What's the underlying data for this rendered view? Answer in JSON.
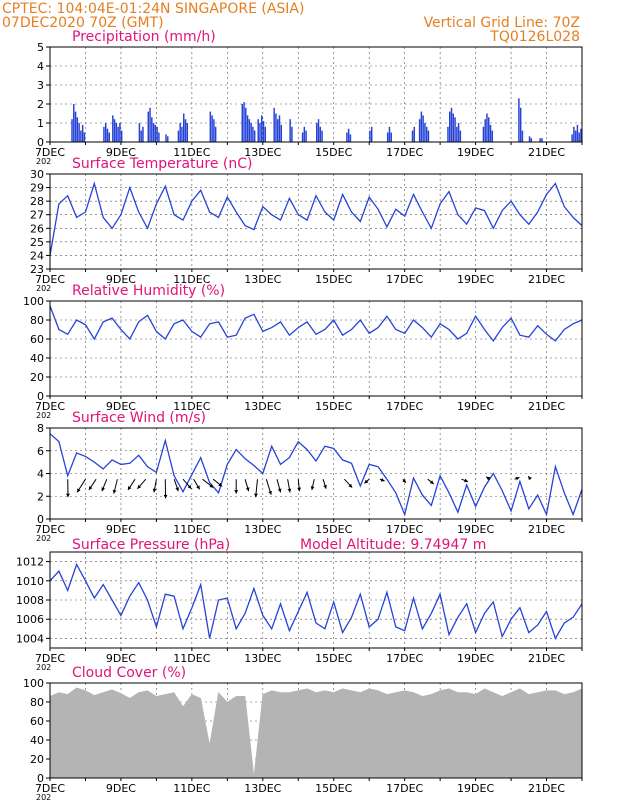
{
  "header": {
    "line1_left": "CPTEC:  104:04E-01:24N  SINGAPORE (ASIA)",
    "line2_left": "07DEC2020 70Z (GMT)",
    "line2_right": "Vertical Grid Line: 70Z",
    "line3_right": "TQ0126L028"
  },
  "colors": {
    "header": "#e67e22",
    "title": "#e0147a",
    "series": "#2743d6",
    "cloud": "#b4b4b4",
    "wind_arrow": "#000000"
  },
  "x_axis": {
    "tick_labels": [
      "7DEC",
      "9DEC",
      "11DEC",
      "13DEC",
      "15DEC",
      "17DEC",
      "19DEC",
      "21DEC"
    ],
    "year_label": "202",
    "range_days": [
      0,
      15
    ]
  },
  "chart_data": [
    {
      "type": "bar",
      "title": "Precipitation (mm/h)",
      "ylim": [
        0,
        5
      ],
      "yticks": [
        "0",
        "1",
        "2",
        "3",
        "4",
        "5"
      ],
      "grid": true,
      "bars": [
        [
          0.6,
          1.2
        ],
        [
          0.65,
          2.0
        ],
        [
          0.7,
          1.6
        ],
        [
          0.75,
          1.3
        ],
        [
          0.8,
          1.0
        ],
        [
          0.85,
          0.6
        ],
        [
          0.9,
          0.9
        ],
        [
          0.95,
          0.5
        ],
        [
          1.5,
          0.8
        ],
        [
          1.55,
          1.0
        ],
        [
          1.6,
          0.7
        ],
        [
          1.65,
          0.5
        ],
        [
          1.75,
          1.4
        ],
        [
          1.8,
          1.2
        ],
        [
          1.85,
          1.0
        ],
        [
          1.9,
          0.8
        ],
        [
          1.95,
          1.0
        ],
        [
          2.0,
          0.6
        ],
        [
          2.5,
          1.0
        ],
        [
          2.55,
          0.6
        ],
        [
          2.6,
          0.8
        ],
        [
          2.75,
          1.6
        ],
        [
          2.8,
          1.8
        ],
        [
          2.85,
          1.3
        ],
        [
          2.9,
          1.0
        ],
        [
          2.95,
          0.9
        ],
        [
          3.0,
          0.8
        ],
        [
          3.05,
          0.5
        ],
        [
          3.25,
          0.4
        ],
        [
          3.3,
          0.3
        ],
        [
          3.6,
          0.6
        ],
        [
          3.65,
          1.0
        ],
        [
          3.7,
          0.8
        ],
        [
          3.75,
          1.5
        ],
        [
          3.8,
          1.2
        ],
        [
          3.85,
          1.0
        ],
        [
          4.5,
          1.6
        ],
        [
          4.55,
          1.4
        ],
        [
          4.6,
          1.2
        ],
        [
          4.65,
          0.8
        ],
        [
          5.4,
          2.0
        ],
        [
          5.45,
          2.1
        ],
        [
          5.5,
          1.8
        ],
        [
          5.55,
          1.4
        ],
        [
          5.6,
          1.2
        ],
        [
          5.65,
          1.0
        ],
        [
          5.7,
          0.8
        ],
        [
          5.75,
          0.6
        ],
        [
          5.85,
          1.2
        ],
        [
          5.9,
          1.0
        ],
        [
          5.95,
          1.4
        ],
        [
          6.0,
          1.1
        ],
        [
          6.05,
          0.8
        ],
        [
          6.3,
          1.8
        ],
        [
          6.35,
          1.5
        ],
        [
          6.4,
          1.2
        ],
        [
          6.45,
          1.4
        ],
        [
          6.5,
          0.9
        ],
        [
          6.75,
          1.2
        ],
        [
          6.8,
          0.8
        ],
        [
          7.1,
          0.5
        ],
        [
          7.15,
          0.8
        ],
        [
          7.2,
          0.6
        ],
        [
          7.5,
          1.0
        ],
        [
          7.55,
          1.2
        ],
        [
          7.6,
          0.8
        ],
        [
          7.65,
          0.6
        ],
        [
          8.35,
          0.5
        ],
        [
          8.4,
          0.7
        ],
        [
          8.45,
          0.4
        ],
        [
          9.0,
          0.6
        ],
        [
          9.05,
          0.8
        ],
        [
          9.5,
          0.5
        ],
        [
          9.55,
          0.8
        ],
        [
          9.6,
          0.5
        ],
        [
          10.2,
          0.6
        ],
        [
          10.25,
          0.8
        ],
        [
          10.4,
          1.2
        ],
        [
          10.45,
          1.6
        ],
        [
          10.5,
          1.4
        ],
        [
          10.55,
          1.0
        ],
        [
          10.6,
          0.8
        ],
        [
          10.65,
          0.6
        ],
        [
          11.2,
          0.8
        ],
        [
          11.25,
          1.6
        ],
        [
          11.3,
          1.8
        ],
        [
          11.35,
          1.5
        ],
        [
          11.4,
          1.3
        ],
        [
          11.45,
          0.8
        ],
        [
          11.5,
          1.0
        ],
        [
          11.55,
          0.6
        ],
        [
          12.2,
          0.8
        ],
        [
          12.25,
          1.2
        ],
        [
          12.3,
          1.5
        ],
        [
          12.35,
          1.3
        ],
        [
          12.4,
          0.9
        ],
        [
          12.45,
          0.6
        ],
        [
          13.2,
          2.3
        ],
        [
          13.25,
          1.8
        ],
        [
          13.3,
          0.6
        ],
        [
          13.5,
          0.3
        ],
        [
          13.55,
          0.2
        ],
        [
          13.8,
          0.2
        ],
        [
          13.85,
          0.2
        ],
        [
          14.7,
          0.4
        ],
        [
          14.75,
          0.8
        ],
        [
          14.8,
          0.6
        ],
        [
          14.85,
          0.9
        ],
        [
          14.9,
          0.5
        ],
        [
          14.95,
          0.7
        ]
      ]
    },
    {
      "type": "line",
      "title": "Surface Temperature (nC)",
      "ylim": [
        23,
        30
      ],
      "yticks": [
        "23",
        "24",
        "25",
        "26",
        "27",
        "28",
        "29",
        "30"
      ],
      "grid": true,
      "x": [
        0,
        0.25,
        0.5,
        0.75,
        1,
        1.25,
        1.5,
        1.75,
        2,
        2.25,
        2.5,
        2.75,
        3,
        3.25,
        3.5,
        3.75,
        4,
        4.25,
        4.5,
        4.75,
        5,
        5.25,
        5.5,
        5.75,
        6,
        6.25,
        6.5,
        6.75,
        7,
        7.25,
        7.5,
        7.75,
        8,
        8.25,
        8.5,
        8.75,
        9,
        9.25,
        9.5,
        9.75,
        10,
        10.25,
        10.5,
        10.75,
        11,
        11.25,
        11.5,
        11.75,
        12,
        12.25,
        12.5,
        12.75,
        13,
        13.25,
        13.5,
        13.75,
        14,
        14.25,
        14.5,
        14.75,
        15
      ],
      "series": [
        {
          "values": [
            24.0,
            27.8,
            28.4,
            26.8,
            27.2,
            29.3,
            26.8,
            26.0,
            27.0,
            29.0,
            27.2,
            26.0,
            27.8,
            29.1,
            27.0,
            26.6,
            28.0,
            28.8,
            27.2,
            26.8,
            28.3,
            27.2,
            26.2,
            25.9,
            27.6,
            27.0,
            26.6,
            28.2,
            27.0,
            26.6,
            28.4,
            27.2,
            26.6,
            28.5,
            27.2,
            26.5,
            28.3,
            27.4,
            26.1,
            27.4,
            26.9,
            28.5,
            27.2,
            26.0,
            27.8,
            28.7,
            27.0,
            26.3,
            27.5,
            27.3,
            26.0,
            27.3,
            28.0,
            27.0,
            26.3,
            27.2,
            28.5,
            29.3,
            27.6,
            26.8,
            26.2
          ]
        }
      ]
    },
    {
      "type": "line",
      "title": "Relative Humidity (%)",
      "ylim": [
        0,
        100
      ],
      "yticks": [
        "0",
        "20",
        "40",
        "60",
        "80",
        "100"
      ],
      "grid": true,
      "x": [
        0,
        0.25,
        0.5,
        0.75,
        1,
        1.25,
        1.5,
        1.75,
        2,
        2.25,
        2.5,
        2.75,
        3,
        3.25,
        3.5,
        3.75,
        4,
        4.25,
        4.5,
        4.75,
        5,
        5.25,
        5.5,
        5.75,
        6,
        6.25,
        6.5,
        6.75,
        7,
        7.25,
        7.5,
        7.75,
        8,
        8.25,
        8.5,
        8.75,
        9,
        9.25,
        9.5,
        9.75,
        10,
        10.25,
        10.5,
        10.75,
        11,
        11.25,
        11.5,
        11.75,
        12,
        12.25,
        12.5,
        12.75,
        13,
        13.25,
        13.5,
        13.75,
        14,
        14.25,
        14.5,
        14.75,
        15
      ],
      "series": [
        {
          "values": [
            95,
            70,
            65,
            80,
            75,
            60,
            78,
            82,
            70,
            60,
            78,
            85,
            68,
            60,
            76,
            80,
            68,
            62,
            76,
            78,
            62,
            64,
            82,
            86,
            68,
            72,
            78,
            64,
            72,
            78,
            65,
            70,
            80,
            64,
            70,
            80,
            66,
            72,
            84,
            70,
            66,
            80,
            72,
            62,
            76,
            70,
            60,
            66,
            84,
            70,
            58,
            72,
            82,
            64,
            62,
            74,
            65,
            58,
            70,
            76,
            80
          ]
        }
      ]
    },
    {
      "type": "line",
      "title": "Surface Wind (m/s)",
      "ylim": [
        0,
        8
      ],
      "yticks": [
        "0",
        "2",
        "4",
        "6",
        "8"
      ],
      "grid": true,
      "x": [
        0,
        0.25,
        0.5,
        0.75,
        1,
        1.25,
        1.5,
        1.75,
        2,
        2.25,
        2.5,
        2.75,
        3,
        3.25,
        3.5,
        3.75,
        4,
        4.25,
        4.5,
        4.75,
        5,
        5.25,
        5.5,
        5.75,
        6,
        6.25,
        6.5,
        6.75,
        7,
        7.25,
        7.5,
        7.75,
        8,
        8.25,
        8.5,
        8.75,
        9,
        9.25,
        9.5,
        9.75,
        10,
        10.25,
        10.5,
        10.75,
        11,
        11.25,
        11.5,
        11.75,
        12,
        12.25,
        12.5,
        12.75,
        13,
        13.25,
        13.5,
        13.75,
        14,
        14.25,
        14.5,
        14.75,
        15
      ],
      "series": [
        {
          "values": [
            7.5,
            6.8,
            3.8,
            5.8,
            5.5,
            5.0,
            4.4,
            5.2,
            4.8,
            4.9,
            5.6,
            4.6,
            4.1,
            6.9,
            3.8,
            2.4,
            3.9,
            5.4,
            3.2,
            2.3,
            4.8,
            6.1,
            5.3,
            4.7,
            4.0,
            6.4,
            4.8,
            5.4,
            6.8,
            6.1,
            5.1,
            6.4,
            6.2,
            5.2,
            4.9,
            2.9,
            4.8,
            4.6,
            3.5,
            2.3,
            0.4,
            3.6,
            2.1,
            1.2,
            3.8,
            2.3,
            0.6,
            3.0,
            1.1,
            2.8,
            4.0,
            2.5,
            0.7,
            3.3,
            0.9,
            2.1,
            0.4,
            4.6,
            2.3,
            0.4,
            2.6
          ]
        }
      ],
      "wind_vectors": [
        [
          0.5,
          0.05,
          -3.0
        ],
        [
          1.0,
          -1.4,
          -2.2
        ],
        [
          1.3,
          -1.2,
          -1.8
        ],
        [
          1.6,
          -0.8,
          -2.0
        ],
        [
          1.9,
          -0.6,
          -2.4
        ],
        [
          2.4,
          -1.2,
          -1.8
        ],
        [
          2.7,
          -1.4,
          -1.6
        ],
        [
          3.0,
          -0.4,
          -2.2
        ],
        [
          3.25,
          0.05,
          -3.2
        ],
        [
          3.5,
          0.7,
          -2.0
        ],
        [
          3.75,
          1.4,
          -1.6
        ],
        [
          4.05,
          1.0,
          -1.7
        ],
        [
          4.3,
          1.8,
          -1.4
        ],
        [
          4.6,
          1.5,
          -1.2
        ],
        [
          5.25,
          0.0,
          -2.4
        ],
        [
          5.5,
          0.6,
          -2.0
        ],
        [
          5.85,
          -0.3,
          -3.0
        ],
        [
          6.1,
          0.8,
          -2.6
        ],
        [
          6.4,
          0.6,
          -2.2
        ],
        [
          6.7,
          0.4,
          -2.2
        ],
        [
          7.0,
          0.2,
          -2.0
        ],
        [
          7.45,
          -0.4,
          -1.8
        ],
        [
          7.7,
          0.5,
          -1.6
        ],
        [
          8.3,
          1.3,
          -1.4
        ],
        [
          9.0,
          -0.8,
          -0.7
        ],
        [
          9.3,
          0.8,
          -0.3
        ],
        [
          9.95,
          0.5,
          -0.6
        ],
        [
          10.65,
          1.0,
          -0.8
        ],
        [
          11.6,
          1.1,
          -0.4
        ],
        [
          12.4,
          -0.6,
          0.4
        ],
        [
          13.1,
          0.8,
          0.3
        ],
        [
          13.55,
          -0.4,
          0.5
        ]
      ]
    },
    {
      "type": "line",
      "title": "Surface Pressure (hPa)",
      "annotation": "Model Altitude: 9.74947 m",
      "ylim": [
        1003,
        1013
      ],
      "yticks": [
        "1004",
        "1006",
        "1008",
        "1010",
        "1012"
      ],
      "grid": true,
      "x": [
        0,
        0.25,
        0.5,
        0.75,
        1,
        1.25,
        1.5,
        1.75,
        2,
        2.25,
        2.5,
        2.75,
        3,
        3.25,
        3.5,
        3.75,
        4,
        4.25,
        4.5,
        4.75,
        5,
        5.25,
        5.5,
        5.75,
        6,
        6.25,
        6.5,
        6.75,
        7,
        7.25,
        7.5,
        7.75,
        8,
        8.25,
        8.5,
        8.75,
        9,
        9.25,
        9.5,
        9.75,
        10,
        10.25,
        10.5,
        10.75,
        11,
        11.25,
        11.5,
        11.75,
        12,
        12.25,
        12.5,
        12.75,
        13,
        13.25,
        13.5,
        13.75,
        14,
        14.25,
        14.5,
        14.75,
        15
      ],
      "series": [
        {
          "values": [
            1010,
            1011,
            1009,
            1011.7,
            1010,
            1008.2,
            1009.6,
            1008,
            1006.4,
            1008.4,
            1009.8,
            1008,
            1005.2,
            1008.6,
            1008.4,
            1005,
            1007.2,
            1009.6,
            1004.0,
            1008.0,
            1008.2,
            1005,
            1006.6,
            1009.2,
            1006.4,
            1005,
            1007.6,
            1004.8,
            1006.8,
            1008.8,
            1005.6,
            1005,
            1007.8,
            1004.6,
            1006.2,
            1008.6,
            1005.2,
            1006,
            1008.8,
            1005.2,
            1004.8,
            1008.2,
            1005,
            1006.6,
            1008.6,
            1004.4,
            1006.2,
            1007.6,
            1004.6,
            1006.6,
            1007.8,
            1004.2,
            1006,
            1007.2,
            1004.6,
            1005.4,
            1006.8,
            1004,
            1005.6,
            1006.2,
            1007.6
          ]
        }
      ]
    },
    {
      "type": "area",
      "title": "Cloud Cover (%)",
      "ylim": [
        0,
        100
      ],
      "yticks": [
        "0",
        "20",
        "40",
        "60",
        "80",
        "100"
      ],
      "grid": true,
      "x": [
        0,
        0.25,
        0.5,
        0.75,
        1,
        1.25,
        1.5,
        1.75,
        2,
        2.25,
        2.5,
        2.75,
        3,
        3.25,
        3.5,
        3.75,
        4,
        4.25,
        4.5,
        4.75,
        5,
        5.25,
        5.5,
        5.75,
        6,
        6.25,
        6.5,
        6.75,
        7,
        7.25,
        7.5,
        7.75,
        8,
        8.25,
        8.5,
        8.75,
        9,
        9.25,
        9.5,
        9.75,
        10,
        10.25,
        10.5,
        10.75,
        11,
        11.25,
        11.5,
        11.75,
        12,
        12.25,
        12.5,
        12.75,
        13,
        13.25,
        13.5,
        13.75,
        14,
        14.25,
        14.5,
        14.75,
        15
      ],
      "series": [
        {
          "values": [
            86,
            90,
            88,
            95,
            92,
            87,
            90,
            93,
            89,
            84,
            90,
            92,
            86,
            88,
            90,
            75,
            88,
            84,
            35,
            90,
            80,
            86,
            86,
            2,
            88,
            92,
            90,
            90,
            92,
            94,
            90,
            92,
            90,
            94,
            92,
            90,
            94,
            92,
            88,
            90,
            92,
            90,
            86,
            88,
            92,
            94,
            90,
            90,
            88,
            94,
            90,
            86,
            90,
            94,
            88,
            90,
            92,
            92,
            88,
            90,
            94
          ]
        }
      ]
    }
  ]
}
